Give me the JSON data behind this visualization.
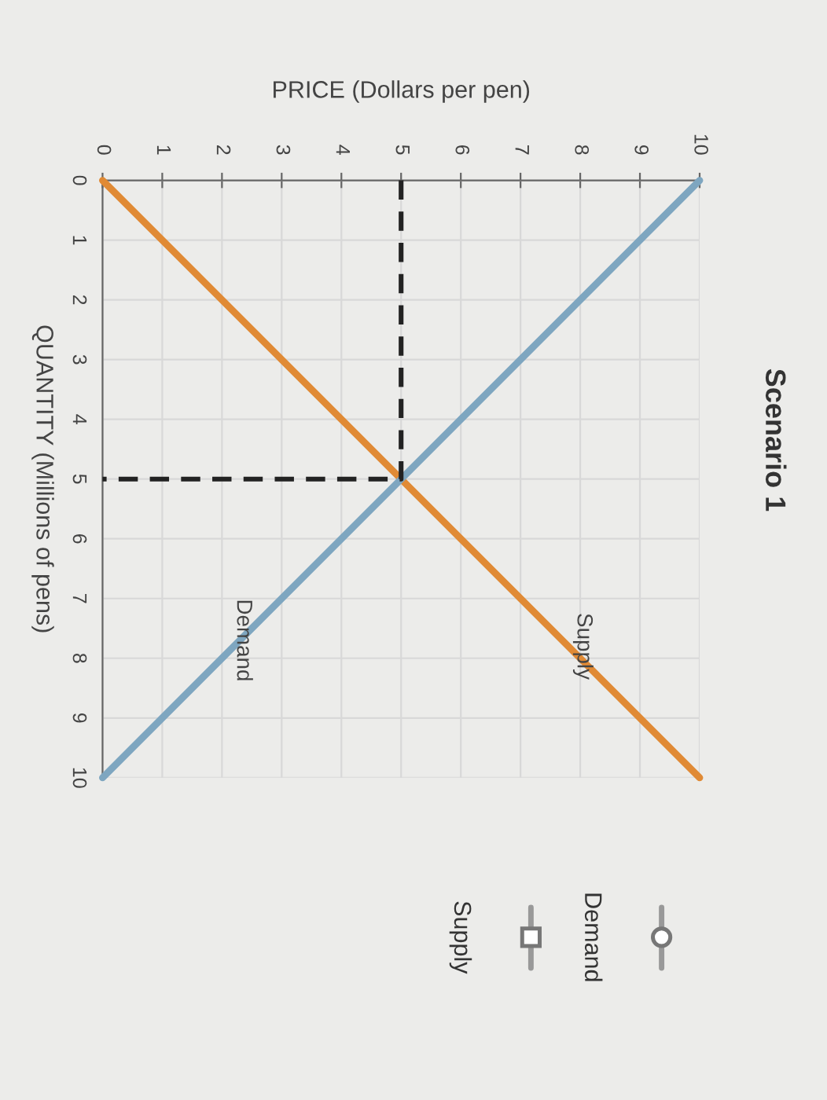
{
  "chart_data": {
    "type": "line",
    "title": "Scenario 1",
    "xlabel": "PRICE (Dollars per pen)",
    "ylabel": "QUANTITY (Millions of pens)",
    "xlim": [
      0,
      10
    ],
    "xticks": [
      0,
      1,
      2,
      3,
      4,
      5,
      6,
      7,
      8,
      9,
      10
    ],
    "ylim": [
      10,
      0
    ],
    "yticks": [
      0,
      1,
      2,
      3,
      4,
      5,
      6,
      7,
      8,
      9,
      10
    ],
    "grid": true,
    "legend": false,
    "series": [
      {
        "name": "Supply",
        "color": "#e08a35",
        "x": [
          0,
          10
        ],
        "values": [
          0,
          10
        ]
      },
      {
        "name": "Demand",
        "color": "#7ea6c0",
        "x": [
          10,
          0
        ],
        "values": [
          0,
          10
        ]
      },
      {
        "color": "#222222",
        "line_style": "dashed",
        "x": [
          5,
          5,
          0
        ],
        "values": [
          0,
          5,
          5
        ]
      }
    ],
    "annotations": [
      "Demand",
      "Supply"
    ]
  }
}
